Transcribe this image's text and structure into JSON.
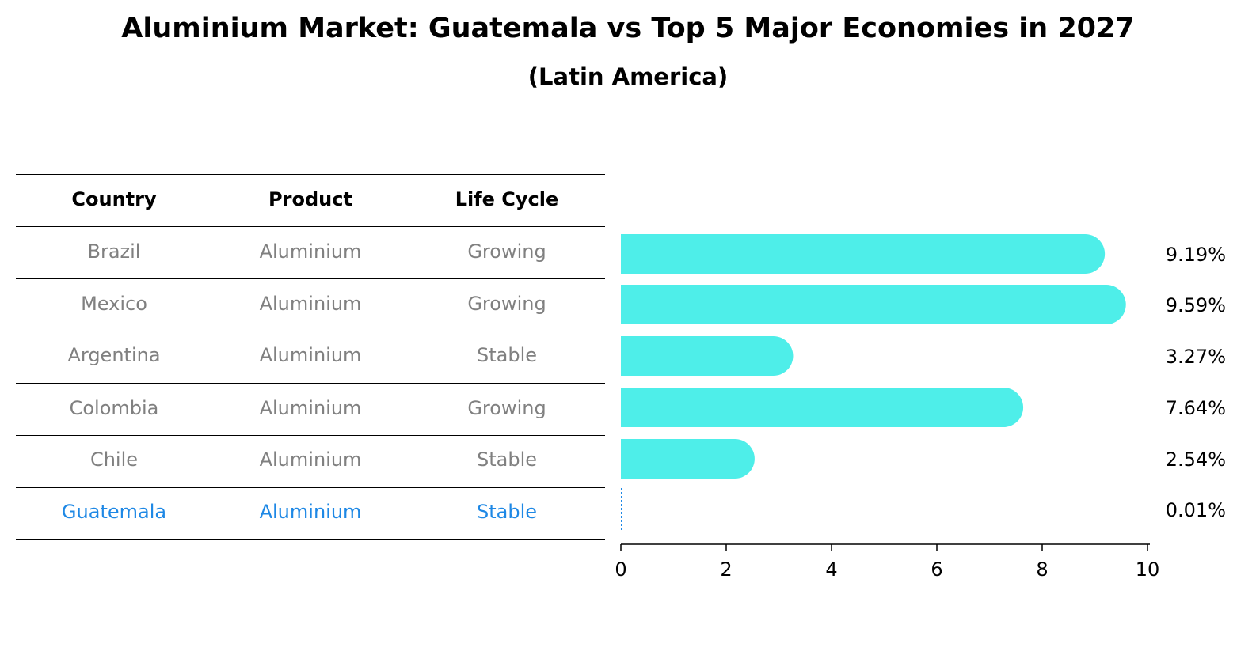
{
  "title": "Aluminium Market: Guatemala vs Top 5 Major Economies in 2027",
  "subtitle": "(Latin America)",
  "table": {
    "columns": [
      "Country",
      "Product",
      "Life Cycle"
    ],
    "rows": [
      [
        "Brazil",
        "Aluminium",
        "Growing"
      ],
      [
        "Mexico",
        "Aluminium",
        "Growing"
      ],
      [
        "Argentina",
        "Aluminium",
        "Stable"
      ],
      [
        "Colombia",
        "Aluminium",
        "Growing"
      ],
      [
        "Chile",
        "Aluminium",
        "Stable"
      ],
      [
        "Guatemala",
        "Aluminium",
        "Stable"
      ]
    ],
    "highlight_row": 5,
    "colors": {
      "header": "#000000",
      "text": "#808080",
      "highlight": "#1e88e5"
    }
  },
  "chart_data": {
    "type": "bar",
    "orientation": "horizontal",
    "categories": [
      "Brazil",
      "Mexico",
      "Argentina",
      "Colombia",
      "Chile",
      "Guatemala"
    ],
    "values": [
      9.19,
      9.59,
      3.27,
      7.64,
      2.54,
      0.01
    ],
    "value_labels": [
      "9.19%",
      "9.59%",
      "3.27%",
      "7.64%",
      "2.54%",
      "0.01%"
    ],
    "xlim": [
      0,
      10
    ],
    "xticks": [
      "0",
      "2",
      "4",
      "6",
      "8",
      "10"
    ],
    "bar_color": "#4eeee9",
    "highlight_color": "#1e88e5",
    "grid": false
  }
}
